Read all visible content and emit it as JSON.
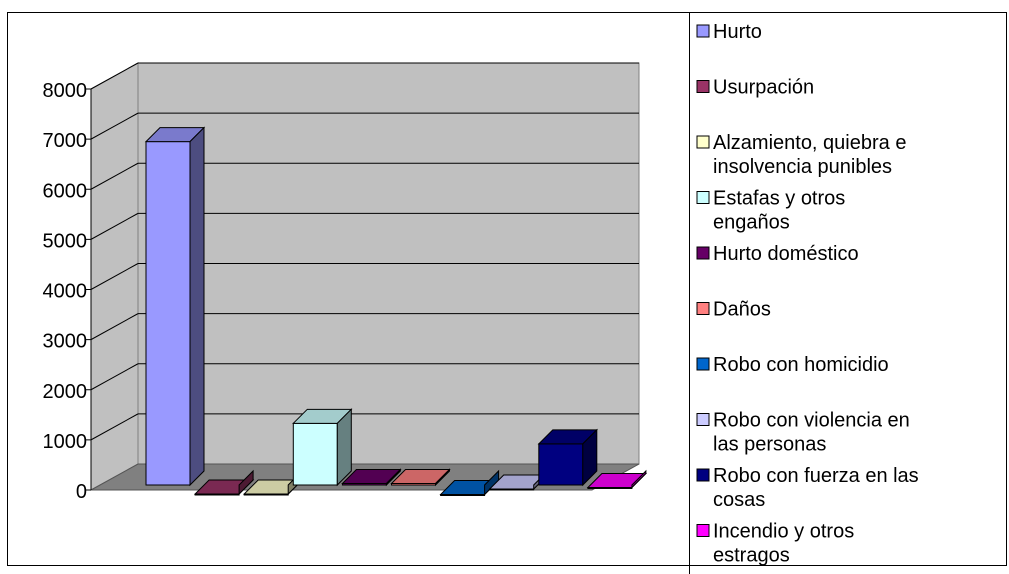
{
  "chart_data": {
    "type": "bar",
    "title": "",
    "xlabel": "",
    "ylabel": "",
    "ylim": [
      0,
      8000
    ],
    "yticks": [
      0,
      1000,
      2000,
      3000,
      4000,
      5000,
      6000,
      7000,
      8000
    ],
    "grid": true,
    "style": "3d-clustered",
    "legend_position": "right",
    "series": [
      {
        "name": "Hurto",
        "values": [
          7050
        ],
        "color": "#9999ff"
      },
      {
        "name": "Usurpación",
        "values": [
          20
        ],
        "color": "#993366"
      },
      {
        "name": "Alzamiento, quiebra e insolvencia punibles",
        "values": [
          20
        ],
        "color": "#ffffcc"
      },
      {
        "name": "Estafas y otros engaños",
        "values": [
          1430
        ],
        "color": "#ccffff"
      },
      {
        "name": "Hurto doméstico",
        "values": [
          230
        ],
        "color": "#660066"
      },
      {
        "name": "Daños",
        "values": [
          230
        ],
        "color": "#ff8080"
      },
      {
        "name": "Robo con homicidio",
        "values": [
          10
        ],
        "color": "#0066cc"
      },
      {
        "name": "Robo con violencia en las personas",
        "values": [
          120
        ],
        "color": "#ccccff"
      },
      {
        "name": "Robo con fuerza en las cosas",
        "values": [
          1020
        ],
        "color": "#000080"
      },
      {
        "name": "Incendio y otros estragos",
        "values": [
          150
        ],
        "color": "#ff00ff"
      }
    ]
  }
}
